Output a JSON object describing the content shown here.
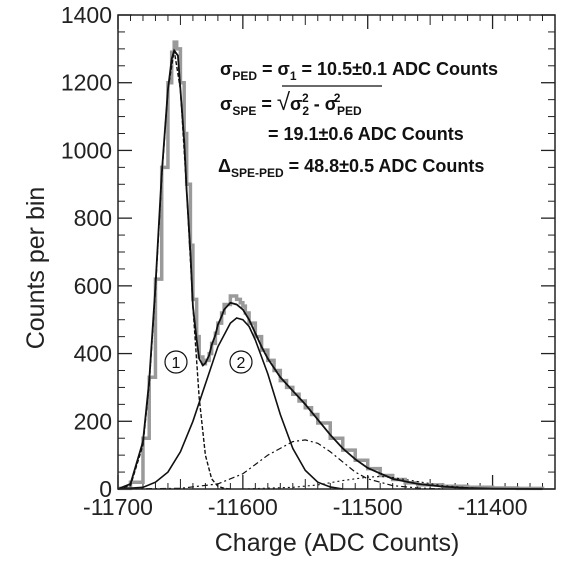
{
  "chart_data": {
    "type": "line",
    "xlabel": "Charge (ADC Counts)",
    "ylabel": "Counts per bin",
    "xlim": [
      -11700,
      -11350
    ],
    "ylim": [
      0,
      1400
    ],
    "x_ticks": [
      -11700,
      -11600,
      -11500,
      -11400
    ],
    "x_tick_labels": [
      "-11700",
      "-11600",
      "-11500",
      "-11400"
    ],
    "y_ticks": [
      0,
      200,
      400,
      600,
      800,
      1000,
      1200,
      1400
    ],
    "y_tick_labels": [
      "0",
      "200",
      "400",
      "600",
      "800",
      "1000",
      "1200",
      "1400"
    ],
    "grid": false,
    "annotations": {
      "line1": {
        "sym": "σ",
        "sub1": "PED",
        "mid": " = σ",
        "sub2": "1",
        "val": " = 10.5±0.1 ADC Counts"
      },
      "line2": {
        "sym": "σ",
        "sub1": "SPE",
        "mid": " = ",
        "sqrt": "√",
        "s2": "σ",
        "s2sub": "2",
        "s2sup": "2",
        "minus": " - σ",
        "spedsub": "PED",
        "spedsup": "2"
      },
      "line3": "= 19.1±0.6 ADC Counts",
      "line4": {
        "sym": "Δ",
        "sub": "SPE-PED",
        "val": " = 48.8±0.5 ADC Counts"
      }
    },
    "peak_labels": [
      "1",
      "2"
    ],
    "histogram": {
      "x": [
        -11700,
        -11690,
        -11680,
        -11675,
        -11670,
        -11665,
        -11660,
        -11657,
        -11655,
        -11653,
        -11650,
        -11647,
        -11645,
        -11642,
        -11640,
        -11637,
        -11635,
        -11632,
        -11630,
        -11627,
        -11625,
        -11622,
        -11620,
        -11617,
        -11615,
        -11610,
        -11605,
        -11602,
        -11600,
        -11598,
        -11595,
        -11590,
        -11585,
        -11580,
        -11575,
        -11570,
        -11565,
        -11560,
        -11555,
        -11550,
        -11545,
        -11540,
        -11530,
        -11520,
        -11510,
        -11500,
        -11490,
        -11480,
        -11470,
        -11460,
        -11440,
        -11420,
        -11400,
        -11380,
        -11360
      ],
      "y": [
        2,
        20,
        150,
        330,
        620,
        950,
        1200,
        1290,
        1320,
        1300,
        1200,
        1050,
        900,
        720,
        560,
        450,
        390,
        370,
        380,
        400,
        430,
        460,
        490,
        520,
        545,
        570,
        560,
        550,
        540,
        520,
        490,
        450,
        410,
        380,
        350,
        320,
        300,
        280,
        260,
        240,
        220,
        195,
        150,
        115,
        85,
        60,
        40,
        28,
        18,
        12,
        8,
        5,
        3,
        2,
        1
      ]
    },
    "total_fit": {
      "x": [
        -11700,
        -11690,
        -11680,
        -11675,
        -11670,
        -11665,
        -11660,
        -11657,
        -11655,
        -11652,
        -11650,
        -11647,
        -11645,
        -11642,
        -11640,
        -11637,
        -11635,
        -11632,
        -11630,
        -11627,
        -11625,
        -11622,
        -11620,
        -11617,
        -11615,
        -11610,
        -11605,
        -11600,
        -11595,
        -11590,
        -11585,
        -11580,
        -11570,
        -11560,
        -11550,
        -11540,
        -11530,
        -11520,
        -11510,
        -11500,
        -11480,
        -11460,
        -11440,
        -11420,
        -11400,
        -11360
      ],
      "y": [
        0,
        15,
        140,
        320,
        600,
        930,
        1180,
        1270,
        1295,
        1280,
        1180,
        1030,
        880,
        700,
        540,
        440,
        385,
        365,
        372,
        395,
        425,
        455,
        485,
        510,
        530,
        550,
        545,
        530,
        500,
        460,
        420,
        385,
        330,
        290,
        250,
        205,
        160,
        120,
        88,
        62,
        30,
        15,
        7,
        3,
        1,
        0
      ]
    },
    "pedestal_gaussian": {
      "x": [
        -11700,
        -11690,
        -11680,
        -11675,
        -11670,
        -11665,
        -11660,
        -11655,
        -11650,
        -11645,
        -11640,
        -11635,
        -11630,
        -11625,
        -11620,
        -11615,
        -11610
      ],
      "y": [
        0,
        10,
        130,
        310,
        590,
        920,
        1180,
        1295,
        1180,
        880,
        540,
        270,
        100,
        30,
        8,
        2,
        0
      ]
    },
    "spe_gaussian": {
      "x": [
        -11700,
        -11680,
        -11670,
        -11660,
        -11650,
        -11640,
        -11630,
        -11620,
        -11610,
        -11605,
        -11600,
        -11595,
        -11590,
        -11580,
        -11570,
        -11560,
        -11550,
        -11540,
        -11530,
        -11520
      ],
      "y": [
        0,
        5,
        20,
        50,
        110,
        200,
        310,
        420,
        490,
        505,
        500,
        480,
        440,
        340,
        220,
        120,
        55,
        20,
        6,
        0
      ]
    },
    "two_pe_component": {
      "x": [
        -11700,
        -11650,
        -11620,
        -11600,
        -11580,
        -11560,
        -11550,
        -11540,
        -11530,
        -11520,
        -11510,
        -11500,
        -11480,
        -11460,
        -11440
      ],
      "y": [
        0,
        2,
        15,
        45,
        100,
        140,
        145,
        135,
        110,
        80,
        50,
        30,
        10,
        3,
        0
      ]
    },
    "three_pe_component": {
      "x": [
        -11600,
        -11560,
        -11540,
        -11520,
        -11500,
        -11490,
        -11480,
        -11460,
        -11440,
        -11420,
        -11400
      ],
      "y": [
        0,
        5,
        12,
        25,
        35,
        37,
        34,
        22,
        10,
        4,
        0
      ]
    }
  }
}
